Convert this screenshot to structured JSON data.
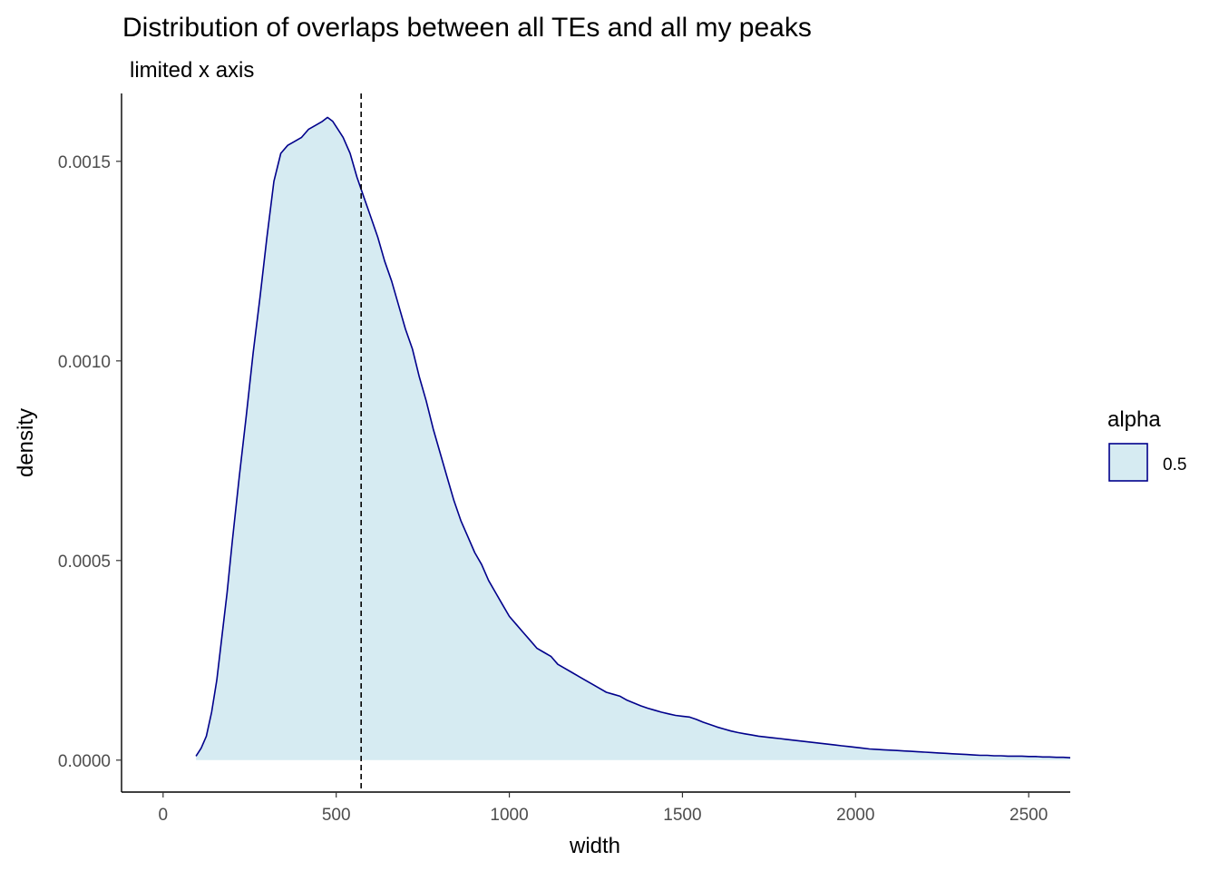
{
  "chart_data": {
    "type": "area",
    "title": "Distribution of overlaps between all TEs and all my peaks",
    "subtitle": "limited x axis",
    "xlabel": "width",
    "ylabel": "density",
    "xlim": [
      -120,
      2620
    ],
    "ylim": [
      -8e-05,
      0.00167
    ],
    "x_ticks": [
      0,
      500,
      1000,
      1500,
      2000,
      2500
    ],
    "x_tick_labels": [
      "0",
      "500",
      "1000",
      "1500",
      "2000",
      "2500"
    ],
    "y_ticks": [
      0.0,
      0.0005,
      0.001,
      0.0015
    ],
    "y_tick_labels": [
      "0.0000",
      "0.0005",
      "0.0010",
      "0.0015"
    ],
    "vline": {
      "x": 572,
      "style": "dashed"
    },
    "grid": false,
    "legend": {
      "title": "alpha",
      "position": "right",
      "entries": [
        {
          "label": "0.5"
        }
      ]
    },
    "colors": {
      "fill": "#add8e6",
      "fill_opacity": 0.5,
      "line": "#00008b",
      "axis": "#000000",
      "vline": "#000000"
    },
    "series": [
      {
        "x": [
          95,
          110,
          125,
          140,
          155,
          170,
          185,
          200,
          220,
          240,
          260,
          280,
          300,
          320,
          340,
          360,
          380,
          400,
          420,
          440,
          460,
          475,
          490,
          505,
          520,
          540,
          560,
          580,
          600,
          620,
          640,
          660,
          680,
          700,
          720,
          740,
          760,
          780,
          800,
          820,
          840,
          860,
          880,
          900,
          920,
          940,
          960,
          980,
          1000,
          1020,
          1040,
          1060,
          1080,
          1100,
          1120,
          1140,
          1160,
          1180,
          1200,
          1220,
          1240,
          1260,
          1280,
          1300,
          1320,
          1340,
          1360,
          1380,
          1400,
          1420,
          1440,
          1460,
          1480,
          1500,
          1520,
          1540,
          1560,
          1580,
          1600,
          1620,
          1640,
          1660,
          1680,
          1700,
          1720,
          1740,
          1760,
          1780,
          1800,
          1820,
          1840,
          1860,
          1880,
          1900,
          1920,
          1940,
          1960,
          1980,
          2000,
          2020,
          2040,
          2060,
          2080,
          2100,
          2120,
          2140,
          2160,
          2180,
          2200,
          2220,
          2240,
          2260,
          2280,
          2300,
          2320,
          2340,
          2360,
          2380,
          2400,
          2420,
          2440,
          2460,
          2480,
          2500,
          2520,
          2540,
          2560,
          2580,
          2600,
          2620
        ],
        "y": [
          1e-05,
          3e-05,
          6e-05,
          0.00012,
          0.0002,
          0.00031,
          0.00042,
          0.00055,
          0.00071,
          0.00086,
          0.00102,
          0.00116,
          0.00131,
          0.00145,
          0.00152,
          0.00154,
          0.00155,
          0.00156,
          0.00158,
          0.00159,
          0.0016,
          0.00161,
          0.0016,
          0.00158,
          0.00156,
          0.00152,
          0.00146,
          0.00141,
          0.00136,
          0.00131,
          0.00125,
          0.0012,
          0.00114,
          0.00108,
          0.00103,
          0.00096,
          0.0009,
          0.00083,
          0.00077,
          0.00071,
          0.00065,
          0.0006,
          0.00056,
          0.00052,
          0.00049,
          0.00045,
          0.00042,
          0.00039,
          0.00036,
          0.00034,
          0.00032,
          0.0003,
          0.00028,
          0.00027,
          0.00026,
          0.00024,
          0.00023,
          0.00022,
          0.00021,
          0.0002,
          0.00019,
          0.00018,
          0.00017,
          0.000165,
          0.00016,
          0.00015,
          0.000143,
          0.000136,
          0.00013,
          0.000125,
          0.00012,
          0.000116,
          0.000112,
          0.00011,
          0.000108,
          0.000102,
          9.5e-05,
          8.9e-05,
          8.3e-05,
          7.8e-05,
          7.3e-05,
          6.9e-05,
          6.6e-05,
          6.3e-05,
          6e-05,
          5.8e-05,
          5.6e-05,
          5.4e-05,
          5.2e-05,
          5e-05,
          4.8e-05,
          4.6e-05,
          4.4e-05,
          4.2e-05,
          4e-05,
          3.8e-05,
          3.6e-05,
          3.4e-05,
          3.2e-05,
          3e-05,
          2.8e-05,
          2.7e-05,
          2.6e-05,
          2.5e-05,
          2.4e-05,
          2.3e-05,
          2.2e-05,
          2.1e-05,
          2e-05,
          1.9e-05,
          1.8e-05,
          1.7e-05,
          1.6e-05,
          1.5e-05,
          1.4e-05,
          1.3e-05,
          1.2e-05,
          1.2e-05,
          1.1e-05,
          1.1e-05,
          1e-05,
          1e-05,
          1e-05,
          9e-06,
          9e-06,
          8e-06,
          8e-06,
          7e-06,
          7e-06,
          6e-06
        ]
      }
    ]
  }
}
